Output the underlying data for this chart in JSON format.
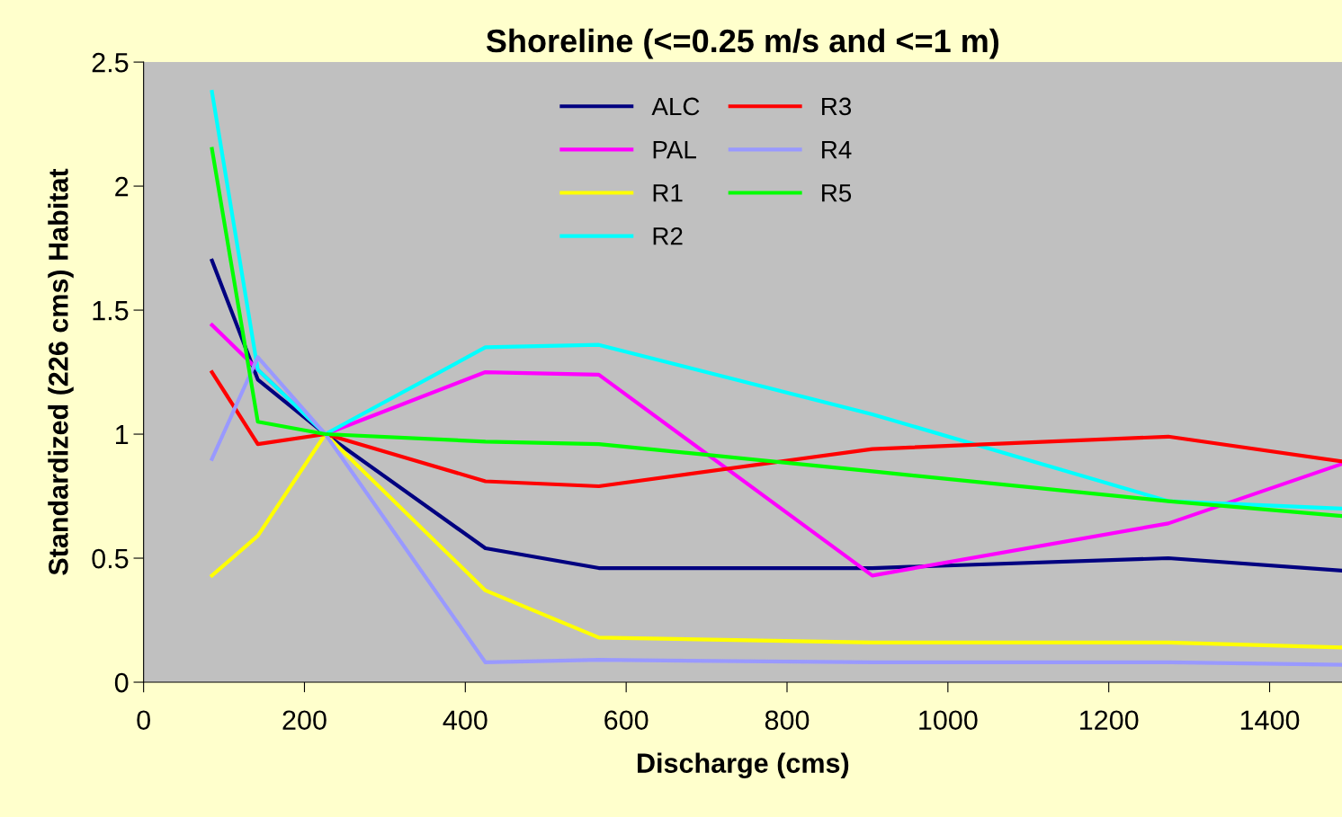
{
  "chart_data": {
    "type": "line",
    "title": "Shoreline (<=0.25 m/s and <=1 m)",
    "xlabel": "Discharge (cms)",
    "ylabel": "Standardized (226 cms) Habitat",
    "x": [
      85,
      142,
      226,
      425,
      566,
      906,
      1274,
      1490
    ],
    "xlim": [
      0,
      1490
    ],
    "xticks": [
      0,
      200,
      400,
      600,
      800,
      1000,
      1200,
      1400
    ],
    "ylim": [
      0,
      2.5
    ],
    "yticks": [
      0,
      0.5,
      1,
      1.5,
      2,
      2.5
    ],
    "grid": false,
    "legend": "top",
    "marker": "none",
    "line_style": "solid",
    "series": [
      {
        "name": "ALC",
        "color": "#000080",
        "values": [
          1.7,
          1.22,
          1,
          0.54,
          0.46,
          0.46,
          0.5,
          0.45
        ]
      },
      {
        "name": "PAL",
        "color": "#ff00ff",
        "values": [
          1.44,
          1.26,
          1,
          1.25,
          1.24,
          0.43,
          0.64,
          0.88
        ]
      },
      {
        "name": "R1",
        "color": "#ffff00",
        "values": [
          0.43,
          0.59,
          1,
          0.37,
          0.18,
          0.16,
          0.16,
          0.14
        ]
      },
      {
        "name": "R2",
        "color": "#00ffff",
        "values": [
          2.38,
          1.26,
          1,
          1.35,
          1.36,
          1.08,
          0.73,
          0.7
        ]
      },
      {
        "name": "R3",
        "color": "#ff0000",
        "values": [
          1.25,
          0.96,
          1,
          0.81,
          0.79,
          0.94,
          0.99,
          0.89
        ]
      },
      {
        "name": "R4",
        "color": "#9999ff",
        "values": [
          0.9,
          1.31,
          1,
          0.08,
          0.09,
          0.08,
          0.08,
          0.07
        ]
      },
      {
        "name": "R5",
        "color": "#00ff00",
        "values": [
          2.15,
          1.05,
          1,
          0.97,
          0.96,
          0.85,
          0.73,
          0.67
        ]
      }
    ]
  }
}
